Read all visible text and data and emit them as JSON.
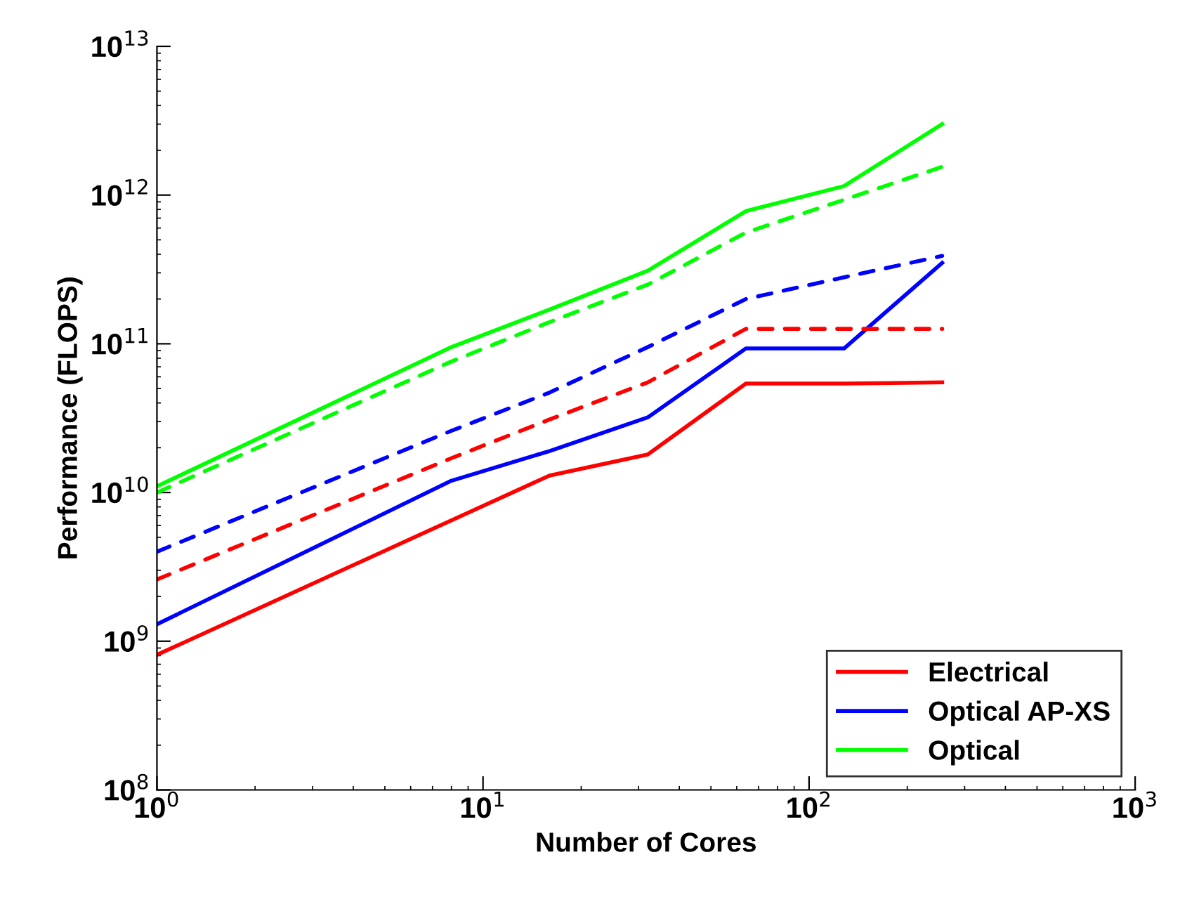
{
  "chart_data": {
    "type": "line",
    "xlabel": "Number of Cores",
    "ylabel": "Performance (FLOPS)",
    "x": [
      1,
      8,
      16,
      32,
      64,
      128,
      256
    ],
    "series": [
      {
        "name": "Electrical",
        "color": "#ff0000",
        "line_style": "solid",
        "values": [
          810000000.0,
          6500000000.0,
          13000000000.0,
          18000000000.0,
          54000000000.0,
          54000000000.0,
          55000000000.0
        ]
      },
      {
        "name": "Optical AP-XS",
        "color": "#0000ff",
        "line_style": "solid",
        "values": [
          1300000000.0,
          12000000000.0,
          19000000000.0,
          32000000000.0,
          93000000000.0,
          93000000000.0,
          350000000000.0
        ]
      },
      {
        "name": "Optical",
        "color": "#00ff00",
        "line_style": "solid",
        "values": [
          11000000000.0,
          95000000000.0,
          170000000000.0,
          310000000000.0,
          780000000000.0,
          1150000000000.0,
          3000000000000.0
        ]
      },
      {
        "color": "#ff0000",
        "line_style": "dashed",
        "values": [
          2600000000.0,
          17000000000.0,
          31000000000.0,
          55000000000.0,
          126000000000.0,
          126000000000.0,
          126000000000.0
        ]
      },
      {
        "color": "#0000ff",
        "line_style": "dashed",
        "values": [
          4000000000.0,
          26000000000.0,
          47000000000.0,
          95000000000.0,
          200000000000.0,
          280000000000.0,
          390000000000.0
        ]
      },
      {
        "color": "#00ff00",
        "line_style": "dashed",
        "values": [
          10000000000.0,
          76000000000.0,
          140000000000.0,
          250000000000.0,
          560000000000.0,
          930000000000.0,
          1550000000000.0
        ]
      }
    ],
    "log": "xy",
    "xlim": [
      1,
      1000
    ],
    "ylim": [
      100000000.0,
      10000000000000.0
    ],
    "xticks": [
      {
        "value": 1,
        "label": "10$^{0}$"
      },
      {
        "value": 10,
        "label": "10$^{1}$"
      },
      {
        "value": 100,
        "label": "10$^{2}$"
      },
      {
        "value": 1000,
        "label": "10$^{3}$"
      }
    ],
    "yticks": [
      {
        "value": 100000000.0,
        "label": "10$^{8}$"
      },
      {
        "value": 1000000000.0,
        "label": "10$^{9}$"
      },
      {
        "value": 10000000000.0,
        "label": "10$^{10}$"
      },
      {
        "value": 100000000000.0,
        "label": "10$^{11}$"
      },
      {
        "value": 1000000000000.0,
        "label": "10$^{12}$"
      },
      {
        "value": 10000000000000.0,
        "label": "10$^{13}$"
      }
    ],
    "grid": false,
    "legend": "bottom right",
    "marker": "none"
  }
}
